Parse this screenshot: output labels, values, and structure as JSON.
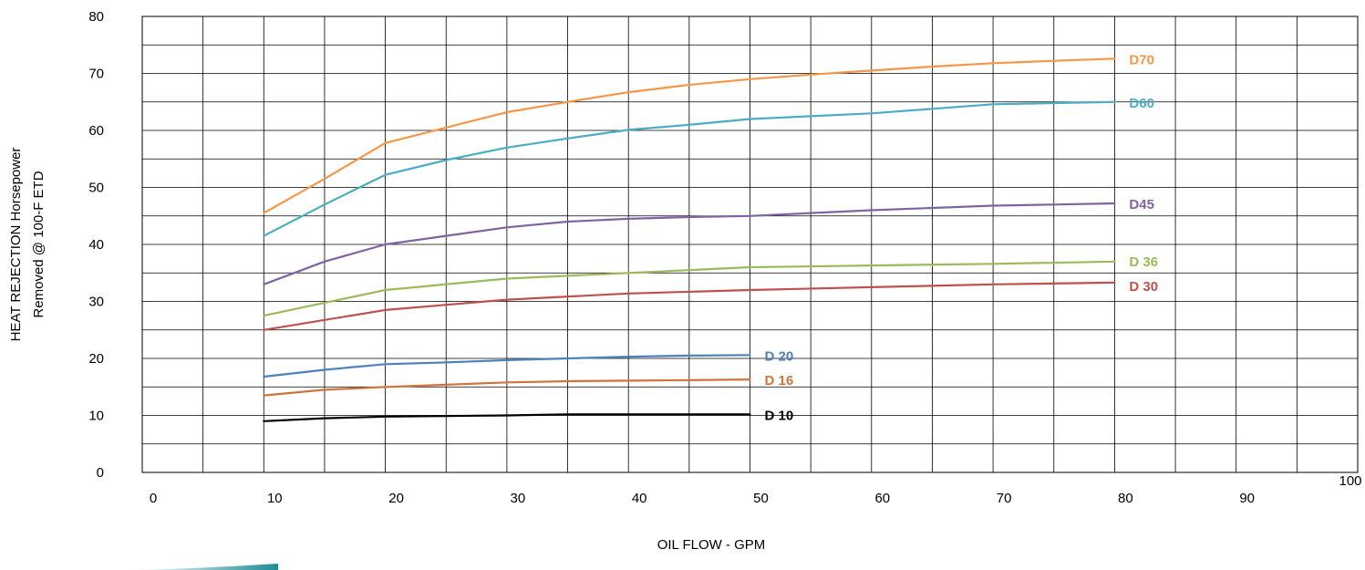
{
  "chart_data": {
    "type": "line",
    "xlabel": "OIL FLOW - GPM",
    "ylabel_line1": "HEAT REJECTION Horsepower",
    "ylabel_line2": "Removed @ 100-F ETD",
    "xlim": [
      0,
      100
    ],
    "ylim": [
      0,
      80
    ],
    "x_ticks": [
      "0",
      "10",
      "20",
      "30",
      "40",
      "50",
      "60",
      "70",
      "80",
      "90",
      "100"
    ],
    "y_ticks": [
      "0",
      "10",
      "20",
      "30",
      "40",
      "50",
      "60",
      "70",
      "80"
    ],
    "grid": true,
    "series": [
      {
        "name": "D70",
        "color": "#F79646",
        "x": [
          10,
          15,
          20,
          25,
          30,
          35,
          40,
          45,
          50,
          55,
          60,
          65,
          70,
          75,
          80
        ],
        "y": [
          45.5,
          51.5,
          57.8,
          60.5,
          63.2,
          65,
          66.7,
          68,
          69,
          69.8,
          70.5,
          71.2,
          71.8,
          72.2,
          72.6
        ]
      },
      {
        "name": "D60",
        "color": "#4BACC6",
        "x": [
          10,
          15,
          20,
          25,
          30,
          35,
          40,
          45,
          50,
          55,
          60,
          65,
          70,
          75,
          80
        ],
        "y": [
          41.5,
          47,
          52.2,
          54.8,
          57,
          58.6,
          60.1,
          61,
          62,
          62.5,
          63,
          63.8,
          64.6,
          64.8,
          65
        ]
      },
      {
        "name": "D45",
        "color": "#8064A2",
        "x": [
          10,
          15,
          20,
          25,
          30,
          35,
          40,
          45,
          50,
          55,
          60,
          65,
          70,
          75,
          80
        ],
        "y": [
          33,
          37,
          40,
          41.5,
          43,
          44,
          44.5,
          44.8,
          45,
          45.5,
          46,
          46.4,
          46.8,
          47,
          47.2
        ]
      },
      {
        "name": "D 36",
        "color": "#9BBB59",
        "x": [
          10,
          20,
          30,
          40,
          50,
          60,
          70,
          80
        ],
        "y": [
          27.5,
          32,
          34,
          35,
          36,
          36.3,
          36.6,
          37
        ]
      },
      {
        "name": "D 30",
        "color": "#C0504D",
        "x": [
          10,
          20,
          30,
          40,
          50,
          60,
          70,
          80
        ],
        "y": [
          25,
          28.5,
          30.3,
          31.4,
          32,
          32.5,
          33,
          33.3
        ]
      },
      {
        "name": "D 20",
        "color": "#4F81BD",
        "x": [
          10,
          15,
          20,
          25,
          30,
          35,
          40,
          45,
          50
        ],
        "y": [
          16.8,
          18,
          19,
          19.3,
          19.7,
          20,
          20.3,
          20.5,
          20.6
        ]
      },
      {
        "name": "D 16",
        "color": "#D2733C",
        "x": [
          10,
          15,
          20,
          25,
          30,
          35,
          40,
          45,
          50
        ],
        "y": [
          13.5,
          14.5,
          15,
          15.4,
          15.8,
          16,
          16.1,
          16.2,
          16.3
        ]
      },
      {
        "name": "D 10",
        "color": "#000000",
        "x": [
          10,
          15,
          20,
          25,
          30,
          35,
          40,
          45,
          50
        ],
        "y": [
          9,
          9.5,
          9.8,
          9.9,
          10,
          10.2,
          10.2,
          10.2,
          10.2
        ]
      }
    ]
  },
  "colors": {
    "grid": "#000000",
    "swoosh": "#1E8C96"
  }
}
